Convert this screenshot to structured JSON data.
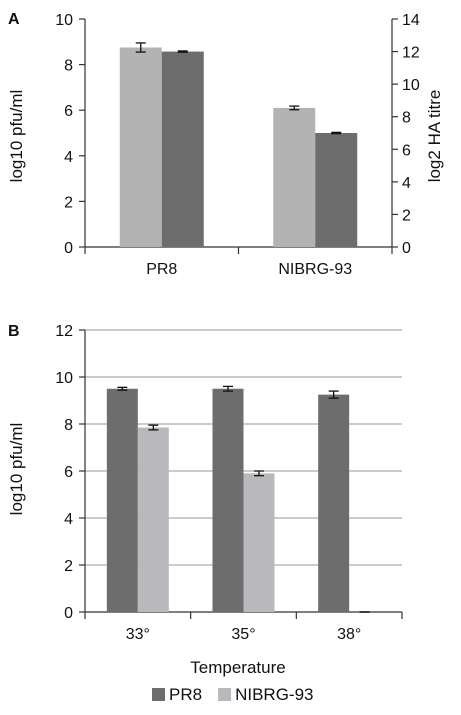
{
  "chart_data": [
    {
      "panel_label": "A",
      "type": "bar",
      "categories": [
        "PR8",
        "NIBRG-93"
      ],
      "ylabel": "log10 pfu/ml",
      "ylim": [
        0,
        10
      ],
      "yticks": [
        "0",
        "2",
        "4",
        "6",
        "8",
        "10"
      ],
      "y2label": "log2 HA titre",
      "y2lim": [
        0,
        14
      ],
      "y2ticks": [
        "0",
        "2",
        "4",
        "6",
        "8",
        "10",
        "12",
        "14"
      ],
      "grid": false,
      "series": [
        {
          "axis": "left",
          "color": "#b3b3b3",
          "values": [
            8.75,
            6.1
          ],
          "errors": [
            0.2,
            0.08
          ]
        },
        {
          "axis": "right",
          "color": "#6d6d6d",
          "values": [
            12.0,
            7.0
          ],
          "errors": [
            0.04,
            0.04
          ]
        }
      ]
    },
    {
      "panel_label": "B",
      "type": "bar",
      "categories": [
        "33°",
        "35°",
        "38°"
      ],
      "xlabel": "Temperature",
      "ylabel": "log10 pfu/ml",
      "ylim": [
        0,
        12
      ],
      "yticks": [
        "0",
        "2",
        "4",
        "6",
        "8",
        "10",
        "12"
      ],
      "grid": true,
      "legend_position": "bottom",
      "series": [
        {
          "name": "PR8",
          "color": "#6d6d6d",
          "values": [
            9.5,
            9.5,
            9.25
          ],
          "errors": [
            0.06,
            0.1,
            0.15
          ]
        },
        {
          "name": "NIBRG-93",
          "color": "#b8b8bd",
          "values": [
            7.85,
            5.9,
            0.0
          ],
          "errors": [
            0.1,
            0.1,
            0.0
          ]
        }
      ]
    }
  ]
}
